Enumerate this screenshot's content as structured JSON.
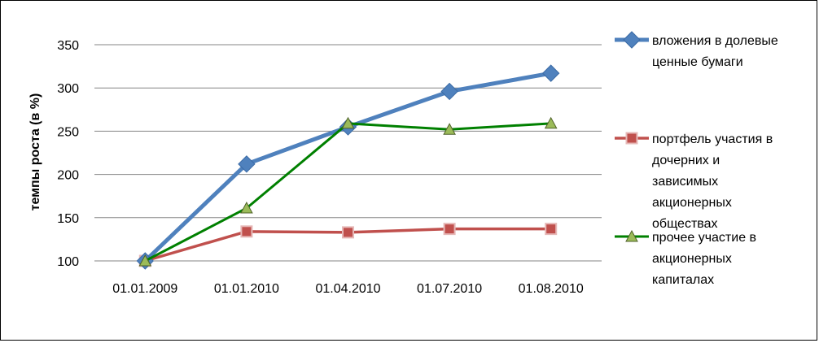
{
  "chart_data": {
    "type": "line",
    "title": "",
    "xlabel": "",
    "ylabel": "темпы роста (в %)",
    "categories": [
      "01.01.2009",
      "01.01.2010",
      "01.04.2010",
      "01.07.2010",
      "01.08.2010"
    ],
    "ylim": [
      100,
      350
    ],
    "yticks": [
      100,
      150,
      200,
      250,
      300,
      350
    ],
    "grid": true,
    "legend_position": "right",
    "series": [
      {
        "name": "вложения в долевые ценные бумаги",
        "legend_lines": [
          "вложения в долевые",
          "ценные бумаги"
        ],
        "values": [
          100,
          212,
          255,
          296,
          317
        ],
        "color": "#4F81BD",
        "marker": "diamond"
      },
      {
        "name": "портфель участия в дочерних и зависимых акционерных обществах",
        "legend_lines": [
          "портфель участия в",
          "дочерних и",
          "зависимых",
          "акционерных",
          "обществах"
        ],
        "values": [
          100,
          134,
          133,
          137,
          137
        ],
        "color": "#C0504D",
        "marker": "square"
      },
      {
        "name": "прочее участие в акционерных капиталах",
        "legend_lines": [
          "прочее участие в",
          "акционерных",
          "капиталах"
        ],
        "values": [
          100,
          161,
          259,
          252,
          259
        ],
        "color": "#008000",
        "marker": "triangle"
      }
    ]
  }
}
